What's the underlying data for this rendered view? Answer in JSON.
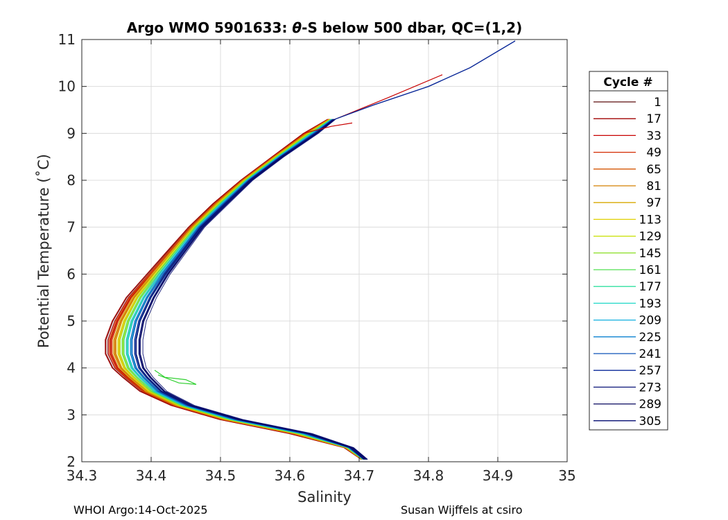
{
  "chart_data": {
    "type": "line",
    "title_prefix": "Argo WMO 5901633: ",
    "title_theta": "θ",
    "title_suffix": "-S below 500 dbar,  QC=(1,2)",
    "xlabel": "Salinity",
    "ylabel": "Potential Temperature (˚C)",
    "xlim": [
      34.3,
      35.0
    ],
    "ylim": [
      2,
      11
    ],
    "xticks": [
      "34.3",
      "34.4",
      "34.5",
      "34.6",
      "34.7",
      "34.8",
      "34.9",
      "35"
    ],
    "yticks": [
      "2",
      "3",
      "4",
      "5",
      "6",
      "7",
      "8",
      "9",
      "10",
      "11"
    ],
    "grid": true,
    "legend": {
      "title": "Cycle #",
      "placement": "outside-right",
      "entries": [
        "1",
        "17",
        "33",
        "49",
        "65",
        "81",
        "97",
        "113",
        "129",
        "145",
        "161",
        "177",
        "193",
        "209",
        "225",
        "241",
        "257",
        "273",
        "289",
        "305"
      ],
      "colors": [
        "#5a0a0a",
        "#a00000",
        "#c80000",
        "#d42a00",
        "#d45500",
        "#d47f00",
        "#d8a800",
        "#e0d000",
        "#c8e000",
        "#90e030",
        "#50e050",
        "#30e0a0",
        "#20d8c8",
        "#10b0e0",
        "#0a80d0",
        "#0a50b8",
        "#0a2898",
        "#0a1478",
        "#0a0a60",
        "#000870"
      ]
    },
    "series_profile": {
      "theta": [
        2.05,
        2.3,
        2.6,
        2.9,
        3.2,
        3.5,
        3.8,
        4.0,
        4.3,
        4.6,
        5.0,
        5.5,
        6.0,
        6.5,
        7.0,
        7.5,
        8.0,
        8.5,
        9.0,
        9.3
      ],
      "salinity_early": [
        34.705,
        34.68,
        34.6,
        34.5,
        34.43,
        34.385,
        34.36,
        34.345,
        34.335,
        34.335,
        34.345,
        34.365,
        34.395,
        34.425,
        34.455,
        34.49,
        34.53,
        34.575,
        34.62,
        34.655
      ],
      "salinity_late": [
        34.71,
        34.69,
        34.63,
        34.53,
        34.46,
        34.42,
        34.4,
        34.39,
        34.385,
        34.385,
        34.39,
        34.405,
        34.425,
        34.45,
        34.475,
        34.51,
        34.545,
        34.59,
        34.64,
        34.665
      ]
    },
    "series_tail_late": {
      "salinity": [
        34.665,
        34.72,
        34.8,
        34.86,
        34.925
      ],
      "theta": [
        9.3,
        9.6,
        10.0,
        10.4,
        10.97
      ]
    },
    "series_tail_early": {
      "salinity": [
        34.62,
        34.66,
        34.69
      ],
      "theta": [
        9.0,
        9.15,
        9.22
      ]
    },
    "series_upper_red": {
      "salinity": [
        34.665,
        34.74,
        34.82
      ],
      "theta": [
        9.3,
        9.75,
        10.25
      ]
    },
    "annotation_green_loop": {
      "salinity": [
        34.405,
        34.42,
        34.45,
        34.465,
        34.44,
        34.41
      ],
      "theta": [
        3.95,
        3.8,
        3.75,
        3.65,
        3.68,
        3.85
      ]
    }
  },
  "footer": {
    "left": "WHOI Argo:14-Oct-2025",
    "right": "Susan Wijffels at csiro"
  }
}
